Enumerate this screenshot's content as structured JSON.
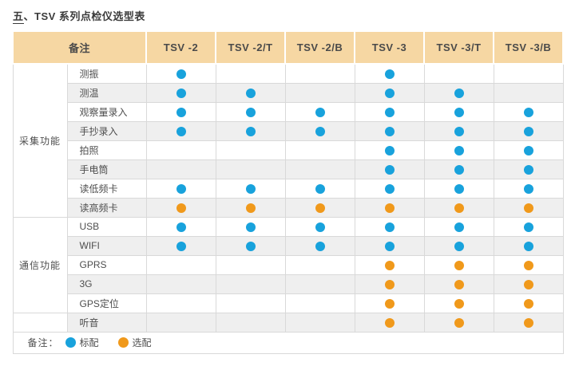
{
  "title": {
    "index": "五",
    "separator": "、",
    "text": "TSV 系列点检仪选型表"
  },
  "table": {
    "corner_header": "备注",
    "model_headers": [
      "TSV -2",
      "TSV -2/T",
      "TSV -2/B",
      "TSV -3",
      "TSV -3/T",
      "TSV -3/B"
    ],
    "rows": [
      {
        "group": "采集功能",
        "group_span": 8,
        "feature": "测振",
        "cells": [
          "standard",
          "",
          "",
          "standard",
          "",
          ""
        ]
      },
      {
        "feature": "测温",
        "cells": [
          "standard",
          "standard",
          "",
          "standard",
          "standard",
          ""
        ]
      },
      {
        "feature": "观察量录入",
        "cells": [
          "standard",
          "standard",
          "standard",
          "standard",
          "standard",
          "standard"
        ]
      },
      {
        "feature": "手抄录入",
        "cells": [
          "standard",
          "standard",
          "standard",
          "standard",
          "standard",
          "standard"
        ]
      },
      {
        "feature": "拍照",
        "cells": [
          "",
          "",
          "",
          "standard",
          "standard",
          "standard"
        ]
      },
      {
        "feature": "手电筒",
        "cells": [
          "",
          "",
          "",
          "standard",
          "standard",
          "standard"
        ]
      },
      {
        "feature": "读低频卡",
        "cells": [
          "standard",
          "standard",
          "standard",
          "standard",
          "standard",
          "standard"
        ]
      },
      {
        "feature": "读高频卡",
        "cells": [
          "optional",
          "optional",
          "optional",
          "optional",
          "optional",
          "optional"
        ]
      },
      {
        "group": "通信功能",
        "group_span": 5,
        "feature": "USB",
        "cells": [
          "standard",
          "standard",
          "standard",
          "standard",
          "standard",
          "standard"
        ]
      },
      {
        "feature": "WIFI",
        "cells": [
          "standard",
          "standard",
          "standard",
          "standard",
          "standard",
          "standard"
        ]
      },
      {
        "feature": "GPRS",
        "cells": [
          "",
          "",
          "",
          "optional",
          "optional",
          "optional"
        ]
      },
      {
        "feature": "3G",
        "cells": [
          "",
          "",
          "",
          "optional",
          "optional",
          "optional"
        ]
      },
      {
        "feature": "GPS定位",
        "cells": [
          "",
          "",
          "",
          "optional",
          "optional",
          "optional"
        ]
      },
      {
        "group": "",
        "group_span": 1,
        "feature": "听音",
        "cells": [
          "",
          "",
          "",
          "optional",
          "optional",
          "optional"
        ]
      }
    ]
  },
  "legend": {
    "label": "备注：",
    "items": [
      {
        "type": "standard",
        "label": "标配"
      },
      {
        "type": "optional",
        "label": "选配"
      }
    ]
  },
  "colors": {
    "standard_dot": "#18A2DC",
    "optional_dot": "#F0991B",
    "header_bg": "#F6D7A3",
    "stripe": "#EFEFEF",
    "border": "#D9D9D9"
  }
}
